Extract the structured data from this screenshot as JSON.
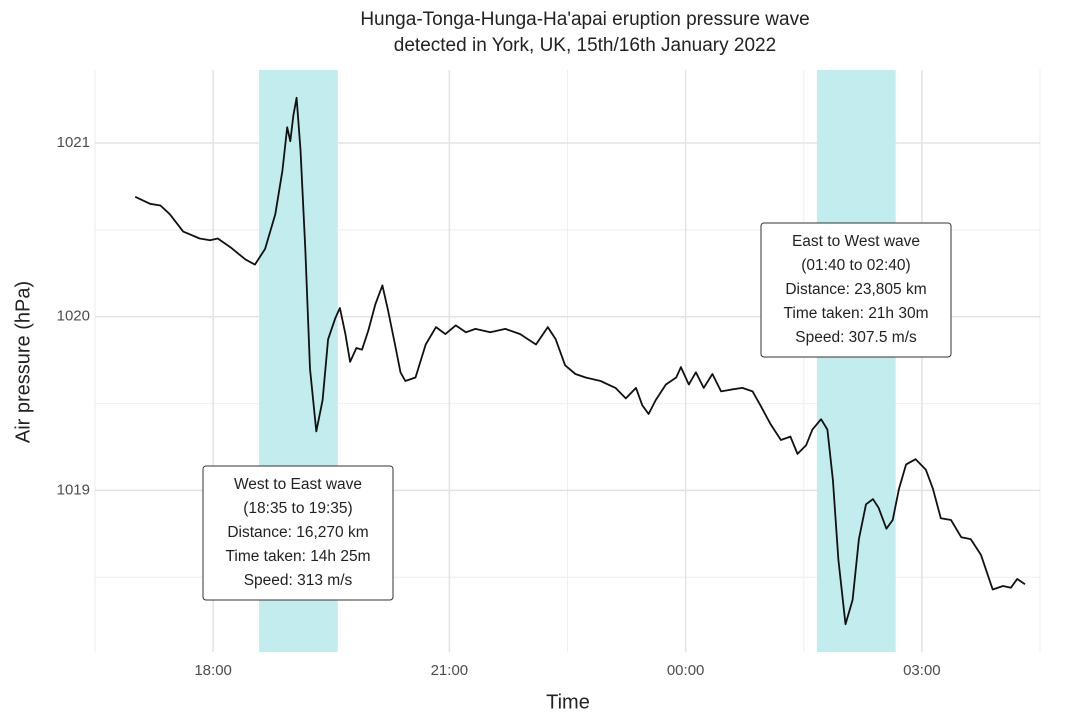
{
  "chart_data": {
    "type": "line",
    "title": [
      "Hunga-Tonga-Hunga-Ha'apai eruption pressure wave",
      "detected in York, UK, 15th/16th January 2022"
    ],
    "x_label": "Time",
    "y_label": "Air pressure (hPa)",
    "xlim": [
      16.5,
      28.5
    ],
    "ylim": [
      1018.07,
      1021.42
    ],
    "xticks": [
      {
        "value": 18,
        "label": "18:00"
      },
      {
        "value": 21,
        "label": "21:00"
      },
      {
        "value": 24,
        "label": "00:00"
      },
      {
        "value": 27,
        "label": "03:00"
      }
    ],
    "x_minor_ticks": [
      16.5,
      19.5,
      22.5,
      25.5,
      28.5
    ],
    "yticks": [
      1019,
      1020,
      1021
    ],
    "y_minor_ticks": [
      1018.5,
      1019.5,
      1020.5
    ],
    "grid": true,
    "shaded_regions": [
      {
        "start": 18.5833,
        "end": 19.5833,
        "color": "#c2ecee"
      },
      {
        "start": 25.6667,
        "end": 26.6667,
        "color": "#c2ecee"
      }
    ],
    "annotations": [
      {
        "lines": [
          "West to East wave",
          "(18:35 to 19:35)",
          "Distance: 16,270 km",
          "Time taken: 14h 25m",
          "Speed: 313 m/s"
        ]
      },
      {
        "lines": [
          "East to West wave",
          "(01:40 to 02:40)",
          "Distance: 23,805 km",
          "Time taken: 21h 30m",
          "Speed: 307.5 m/s"
        ]
      }
    ],
    "x": [
      17.01,
      17.2,
      17.33,
      17.45,
      17.62,
      17.83,
      17.96,
      18.06,
      18.22,
      18.41,
      18.53,
      18.66,
      18.79,
      18.88,
      18.94,
      18.98,
      19.02,
      19.06,
      19.11,
      19.17,
      19.23,
      19.31,
      19.39,
      19.46,
      19.55,
      19.61,
      19.68,
      19.74,
      19.82,
      19.89,
      19.97,
      20.06,
      20.15,
      20.22,
      20.31,
      20.38,
      20.44,
      20.57,
      20.7,
      20.83,
      20.95,
      21.08,
      21.21,
      21.33,
      21.52,
      21.71,
      21.9,
      22.1,
      22.25,
      22.35,
      22.47,
      22.6,
      22.73,
      22.92,
      23.11,
      23.24,
      23.37,
      23.45,
      23.53,
      23.62,
      23.75,
      23.88,
      23.94,
      24.04,
      24.13,
      24.23,
      24.34,
      24.45,
      24.57,
      24.72,
      24.85,
      24.95,
      25.08,
      25.21,
      25.33,
      25.42,
      25.53,
      25.61,
      25.72,
      25.8,
      25.87,
      25.94,
      26.03,
      26.12,
      26.2,
      26.29,
      26.38,
      26.45,
      26.55,
      26.63,
      26.71,
      26.8,
      26.92,
      27.05,
      27.14,
      27.24,
      27.37,
      27.5,
      27.62,
      27.75,
      27.9,
      28.03,
      28.13,
      28.21,
      28.31
    ],
    "series": [
      {
        "color": "#111111",
        "values": [
          1020.69,
          1020.65,
          1020.64,
          1020.59,
          1020.49,
          1020.45,
          1020.44,
          1020.45,
          1020.4,
          1020.33,
          1020.3,
          1020.39,
          1020.59,
          1020.84,
          1021.09,
          1021.01,
          1021.16,
          1021.26,
          1020.96,
          1020.39,
          1019.7,
          1019.34,
          1019.52,
          1019.87,
          1019.99,
          1020.05,
          1019.9,
          1019.74,
          1019.82,
          1019.81,
          1019.92,
          1020.07,
          1020.18,
          1020.04,
          1019.84,
          1019.68,
          1019.63,
          1019.65,
          1019.84,
          1019.94,
          1019.9,
          1019.95,
          1019.91,
          1019.93,
          1019.91,
          1019.93,
          1019.9,
          1019.84,
          1019.94,
          1019.87,
          1019.72,
          1019.67,
          1019.65,
          1019.63,
          1019.59,
          1019.53,
          1019.59,
          1019.49,
          1019.44,
          1019.52,
          1019.61,
          1019.65,
          1019.71,
          1019.61,
          1019.68,
          1019.59,
          1019.67,
          1019.57,
          1019.58,
          1019.59,
          1019.57,
          1019.49,
          1019.38,
          1019.29,
          1019.31,
          1019.21,
          1019.26,
          1019.35,
          1019.41,
          1019.35,
          1019.06,
          1018.6,
          1018.23,
          1018.37,
          1018.72,
          1018.92,
          1018.95,
          1018.9,
          1018.78,
          1018.83,
          1019.01,
          1019.15,
          1019.18,
          1019.12,
          1019.01,
          1018.84,
          1018.83,
          1018.73,
          1018.72,
          1018.63,
          1018.43,
          1018.45,
          1018.44,
          1018.49,
          1018.46
        ]
      }
    ]
  }
}
